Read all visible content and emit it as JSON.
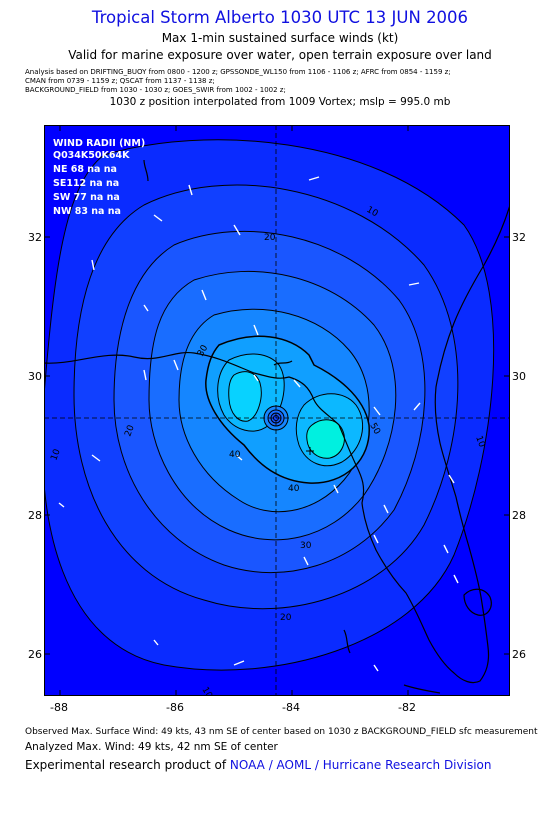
{
  "header": {
    "title": "Tropical Storm Alberto 1030 UTC 13 JUN 2006",
    "subtitle_line1": "Max 1-min sustained surface winds (kt)",
    "subtitle_line2": "Valid for marine exposure over water, open terrain exposure over land",
    "analysis_lines": [
      "Analysis based on  DRIFTING_BUOY from 0800 - 1200 z;  GPSSONDE_WL150 from 1106 - 1106 z;  AFRC from 0854 - 1159 z;",
      "CMAN from 0739 - 1159 z;  QSCAT from 1137 - 1138 z;",
      "BACKGROUND_FIELD from 1030 - 1030 z;  GOES_SWIR from 1002 - 1002 z;"
    ],
    "interpolation": "1030 z position interpolated from 1009 Vortex; mslp = 995.0 mb"
  },
  "wind_radii": {
    "title": "WIND RADII (NM)",
    "header": "Q034K50K64K",
    "rows": [
      "NE 68 na na",
      "SE112 na na",
      "SW 77 na na",
      "NW 83 na na"
    ]
  },
  "axes": {
    "lon_labels": [
      "-88",
      "-86",
      "-84",
      "-82"
    ],
    "lat_labels": [
      "32",
      "30",
      "28",
      "26"
    ]
  },
  "contour_labels": [
    "10",
    "20",
    "30",
    "40",
    "50"
  ],
  "storm_center": {
    "lon": -84.25,
    "lat": 29.4
  },
  "max_wind_location": {
    "lon": -83.6,
    "lat": 28.9
  },
  "colors": {
    "title": "#1010e0",
    "bg_blue": "#0000ff",
    "levels": [
      "#0a2bff",
      "#1140ff",
      "#1a56ff",
      "#196dff",
      "#1586ff",
      "#109fff",
      "#0cb8ff",
      "#08d2ff",
      "#05ecf4",
      "#00f0e0"
    ]
  },
  "footer": {
    "observed": "Observed Max. Surface Wind: 49 kts, 43 nm SE of center based on 1030 z BACKGROUND_FIELD sfc measurement",
    "analyzed": "Analyzed Max. Wind: 49 kts, 42 nm SE of center",
    "credit_prefix": "Experimental research product of ",
    "credit_org": "NOAA / AOML / Hurricane Research Division"
  }
}
